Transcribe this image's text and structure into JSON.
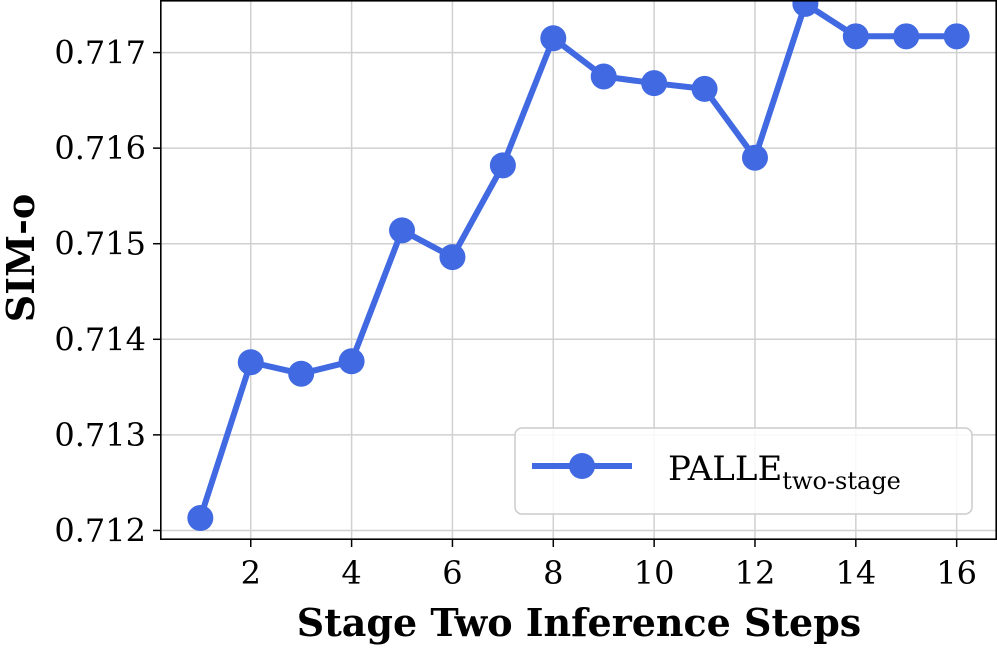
{
  "chart_data": {
    "type": "line",
    "xlabel": "Stage Two Inference Steps",
    "ylabel": "SIM-o",
    "xlim": [
      0.2,
      16.8
    ],
    "ylim": [
      0.7119,
      0.71755
    ],
    "x_ticks": [
      2,
      4,
      6,
      8,
      10,
      12,
      14,
      16
    ],
    "y_ticks": [
      0.712,
      0.713,
      0.714,
      0.715,
      0.716,
      0.717
    ],
    "y_tick_labels": [
      "0.712",
      "0.713",
      "0.714",
      "0.715",
      "0.716",
      "0.717"
    ],
    "grid": true,
    "legend": {
      "position": "lower-right",
      "label_main": "PALLE",
      "label_sub": "two-stage"
    },
    "series": [
      {
        "name": "PALLE two-stage",
        "color": "#4169e1",
        "marker": "circle",
        "x": [
          1,
          2,
          3,
          4,
          5,
          6,
          7,
          8,
          9,
          10,
          11,
          12,
          13,
          14,
          15,
          16
        ],
        "y": [
          0.71213,
          0.71376,
          0.71364,
          0.71377,
          0.71514,
          0.71486,
          0.71582,
          0.71715,
          0.71675,
          0.71668,
          0.71662,
          0.7159,
          0.71751,
          0.71717,
          0.71717,
          0.71717
        ]
      }
    ]
  }
}
